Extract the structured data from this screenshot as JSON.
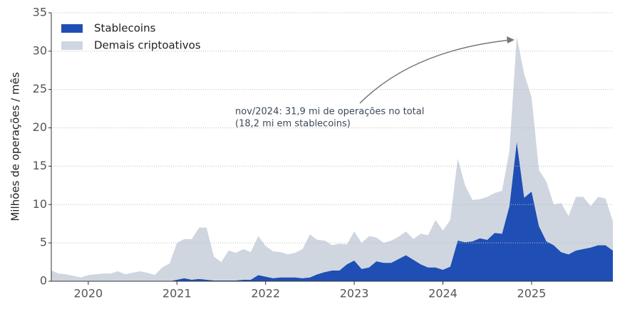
{
  "chart_data": {
    "type": "stacked_area",
    "ylabel": "Milhões de operações / mês",
    "annotation": [
      "nov/2024: 31,9 mi de operações no total",
      "(18,2 mi em stablecoins)"
    ],
    "legend": "upper left",
    "grid": true,
    "x": [
      2019.583,
      2019.667,
      2019.75,
      2019.833,
      2019.917,
      2020.0,
      2020.083,
      2020.167,
      2020.25,
      2020.333,
      2020.417,
      2020.5,
      2020.583,
      2020.667,
      2020.75,
      2020.833,
      2020.917,
      2021.0,
      2021.083,
      2021.167,
      2021.25,
      2021.333,
      2021.417,
      2021.5,
      2021.583,
      2021.667,
      2021.75,
      2021.833,
      2021.917,
      2022.0,
      2022.083,
      2022.167,
      2022.25,
      2022.333,
      2022.417,
      2022.5,
      2022.583,
      2022.667,
      2022.75,
      2022.833,
      2022.917,
      2023.0,
      2023.083,
      2023.167,
      2023.25,
      2023.333,
      2023.417,
      2023.5,
      2023.583,
      2023.667,
      2023.75,
      2023.833,
      2023.917,
      2024.0,
      2024.083,
      2024.167,
      2024.25,
      2024.333,
      2024.417,
      2024.5,
      2024.583,
      2024.667,
      2024.75,
      2024.833,
      2024.917,
      2025.0,
      2025.083,
      2025.167,
      2025.25,
      2025.333,
      2025.417,
      2025.5,
      2025.583,
      2025.667,
      2025.75,
      2025.833,
      2025.917
    ],
    "series": [
      {
        "name": "Stablecoins",
        "color": "#1f4fb5",
        "values": [
          0,
          0,
          0,
          0,
          0,
          0,
          0,
          0,
          0,
          0,
          0,
          0,
          0,
          0,
          0,
          0,
          0,
          0.2,
          0.4,
          0.2,
          0.3,
          0.2,
          0.1,
          0.1,
          0.1,
          0.1,
          0.2,
          0.2,
          0.8,
          0.6,
          0.4,
          0.5,
          0.5,
          0.5,
          0.4,
          0.5,
          0.9,
          1.2,
          1.4,
          1.4,
          2.2,
          2.7,
          1.6,
          1.8,
          2.6,
          2.4,
          2.4,
          2.9,
          3.4,
          2.8,
          2.2,
          1.8,
          1.8,
          1.5,
          1.9,
          5.3,
          5.1,
          5.2,
          5.6,
          5.4,
          6.3,
          6.2,
          9.8,
          18.2,
          10.9,
          11.7,
          7.2,
          5.2,
          4.7,
          3.8,
          3.5,
          4.0,
          4.2,
          4.4,
          4.7,
          4.7,
          4.0
        ]
      },
      {
        "name": "Demais criptoativos",
        "color": "#cfd6e0",
        "values": [
          1.4,
          1.0,
          0.9,
          0.7,
          0.5,
          0.8,
          0.9,
          1.0,
          1.0,
          1.3,
          0.9,
          1.1,
          1.3,
          1.1,
          0.8,
          1.8,
          2.3,
          4.8,
          5.1,
          5.3,
          6.7,
          6.8,
          3.1,
          2.4,
          3.9,
          3.6,
          4.0,
          3.6,
          5.1,
          4.0,
          3.5,
          3.3,
          3.0,
          3.2,
          3.8,
          5.6,
          4.5,
          4.1,
          3.3,
          3.5,
          2.6,
          3.8,
          3.4,
          4.1,
          3.1,
          2.6,
          2.9,
          2.9,
          3.1,
          2.7,
          4.0,
          4.2,
          6.2,
          5.1,
          6.1,
          10.7,
          7.4,
          5.4,
          5.1,
          5.6,
          5.2,
          5.6,
          7.2,
          13.7,
          16.1,
          12.3,
          7.3,
          7.8,
          5.3,
          6.4,
          5.0,
          7.0,
          6.8,
          5.4,
          6.3,
          6.1,
          3.8
        ]
      }
    ],
    "xlim": [
      2019.583,
      2025.917
    ],
    "xticks": [
      2020,
      2021,
      2022,
      2023,
      2024,
      2025
    ],
    "ylim": [
      0,
      35
    ],
    "yticks": [
      0,
      5,
      10,
      15,
      20,
      25,
      30,
      35
    ]
  }
}
